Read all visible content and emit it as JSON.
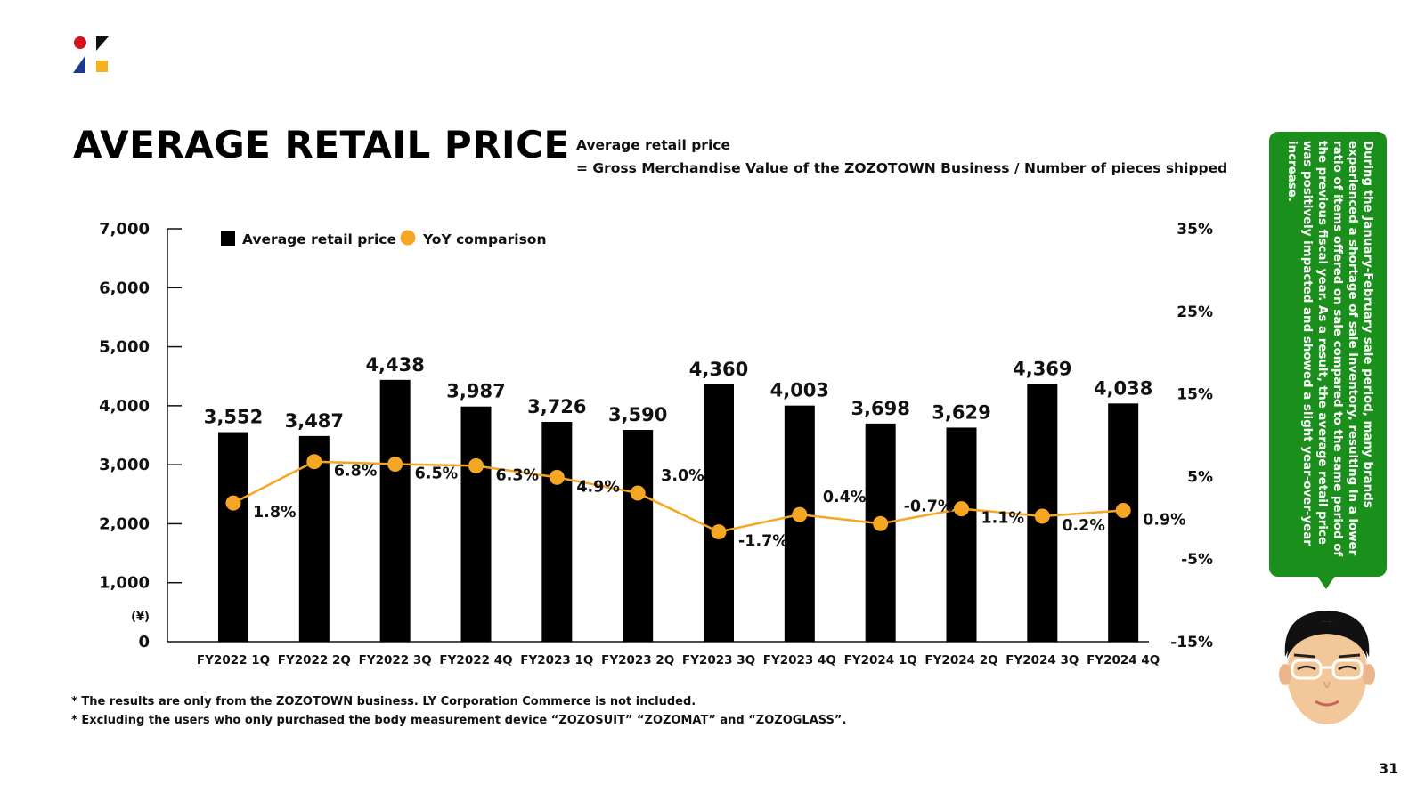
{
  "header": {
    "title": "AVERAGE RETAIL PRICE",
    "formula_line1": "Average retail price",
    "formula_line2": "= Gross Merchandise Value of the ZOZOTOWN Business / Number of pieces shipped"
  },
  "chart_data": {
    "type": "bar",
    "categories": [
      "FY2022 1Q",
      "FY2022 2Q",
      "FY2022 3Q",
      "FY2022 4Q",
      "FY2023 1Q",
      "FY2023 2Q",
      "FY2023 3Q",
      "FY2023 4Q",
      "FY2024 1Q",
      "FY2024 2Q",
      "FY2024 3Q",
      "FY2024 4Q"
    ],
    "series": [
      {
        "name": "Average retail price",
        "type": "bar",
        "axis": "left",
        "color": "#000000",
        "values": [
          3552,
          3487,
          4438,
          3987,
          3726,
          3590,
          4360,
          4003,
          3698,
          3629,
          4369,
          4038
        ],
        "labels": [
          "3,552",
          "3,487",
          "4,438",
          "3,987",
          "3,726",
          "3,590",
          "4,360",
          "4,003",
          "3,698",
          "3,629",
          "4,369",
          "4,038"
        ]
      },
      {
        "name": "YoY comparison",
        "type": "line",
        "axis": "right",
        "color": "#f5a623",
        "values": [
          1.8,
          6.8,
          6.5,
          6.3,
          4.9,
          3.0,
          -1.7,
          0.4,
          -0.7,
          1.1,
          0.2,
          0.9
        ],
        "labels": [
          "1.8%",
          "6.8%",
          "6.5%",
          "6.3%",
          "4.9%",
          "3.0%",
          "-1.7%",
          "0.4%",
          "-0.7%",
          "1.1%",
          "0.2%",
          "0.9%"
        ]
      }
    ],
    "y_left": {
      "min": 0,
      "max": 7000,
      "ticks": [
        0,
        1000,
        2000,
        3000,
        4000,
        5000,
        6000,
        7000
      ],
      "tick_labels": [
        "0",
        "1,000",
        "2,000",
        "3,000",
        "4,000",
        "5,000",
        "6,000",
        "7,000"
      ],
      "unit_label": "(¥)"
    },
    "y_right": {
      "min": -15,
      "max": 35,
      "ticks": [
        -15,
        -5,
        5,
        15,
        25,
        35
      ],
      "tick_labels": [
        "-15%",
        "-5%",
        "5%",
        "15%",
        "25%",
        "35%"
      ]
    },
    "legend_position": "top-left",
    "grid": false
  },
  "sidebar": {
    "comment": "During the January-February sale period, many brands experienced a shortage of sale inventory, resulting in a lower ratio of items offered on sale compared to the same period of the previous fiscal year. As a result, the average retail price was positively impacted and showed a slight year-over-year increase."
  },
  "footnotes": {
    "note1": "* The results are only from the ZOZOTOWN business. LY Corporation Commerce is not included.",
    "note2": "* Excluding the users who only purchased the body measurement device “ZOZOSUIT” “ZOZOMAT” and “ZOZOGLASS”."
  },
  "page_number": "31"
}
